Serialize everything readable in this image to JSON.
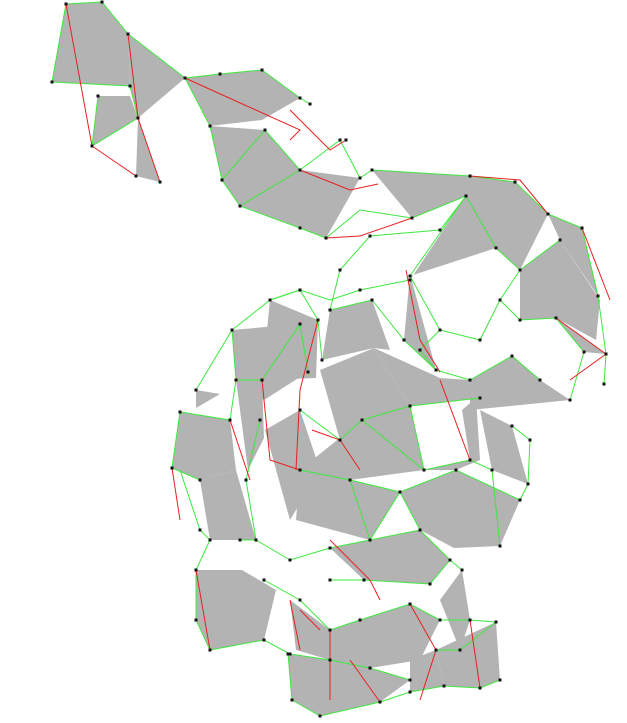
{
  "figure": {
    "description_type": "wireframe-mesh",
    "colors": {
      "background": "#ffffff",
      "face_fill": "#b3b3b3",
      "edge_primary": "#3fe83f",
      "edge_secondary": "#e82020",
      "vertex": "#111111"
    }
  }
}
